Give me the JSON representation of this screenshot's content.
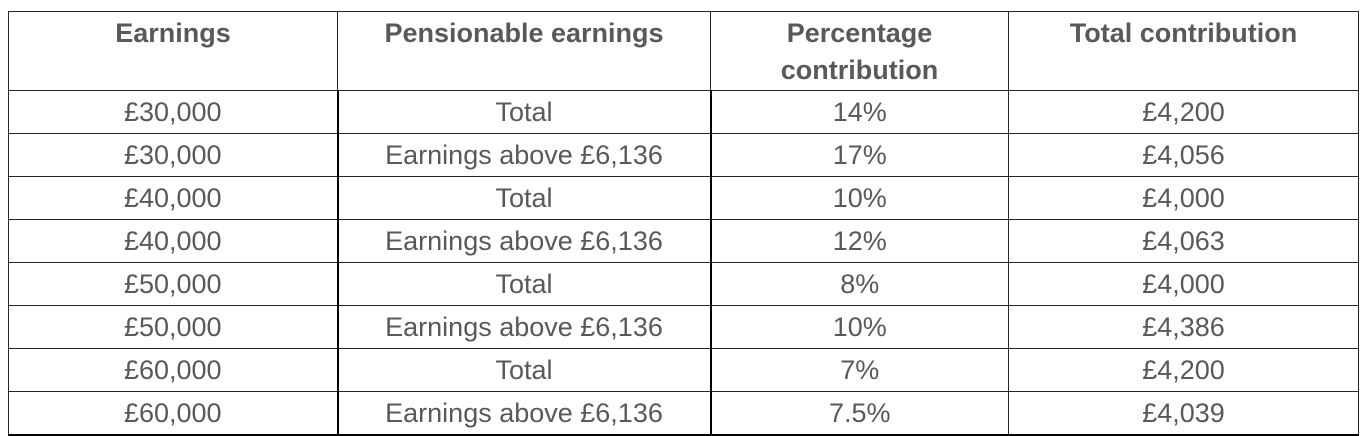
{
  "table": {
    "headers": [
      "Earnings",
      "Pensionable earnings",
      "Percentage contribution",
      "Total contribution"
    ],
    "rows": [
      [
        "£30,000",
        "Total",
        "14%",
        "£4,200"
      ],
      [
        "£30,000",
        "Earnings above £6,136",
        "17%",
        "£4,056"
      ],
      [
        "£40,000",
        "Total",
        "10%",
        "£4,000"
      ],
      [
        "£40,000",
        "Earnings above £6,136",
        "12%",
        "£4,063"
      ],
      [
        "£50,000",
        "Total",
        "8%",
        "£4,000"
      ],
      [
        "£50,000",
        "Earnings above £6,136",
        "10%",
        "£4,386"
      ],
      [
        "£60,000",
        "Total",
        "7%",
        "£4,200"
      ],
      [
        "£60,000",
        "Earnings above £6,136",
        "7.5%",
        "£4,039"
      ]
    ]
  }
}
